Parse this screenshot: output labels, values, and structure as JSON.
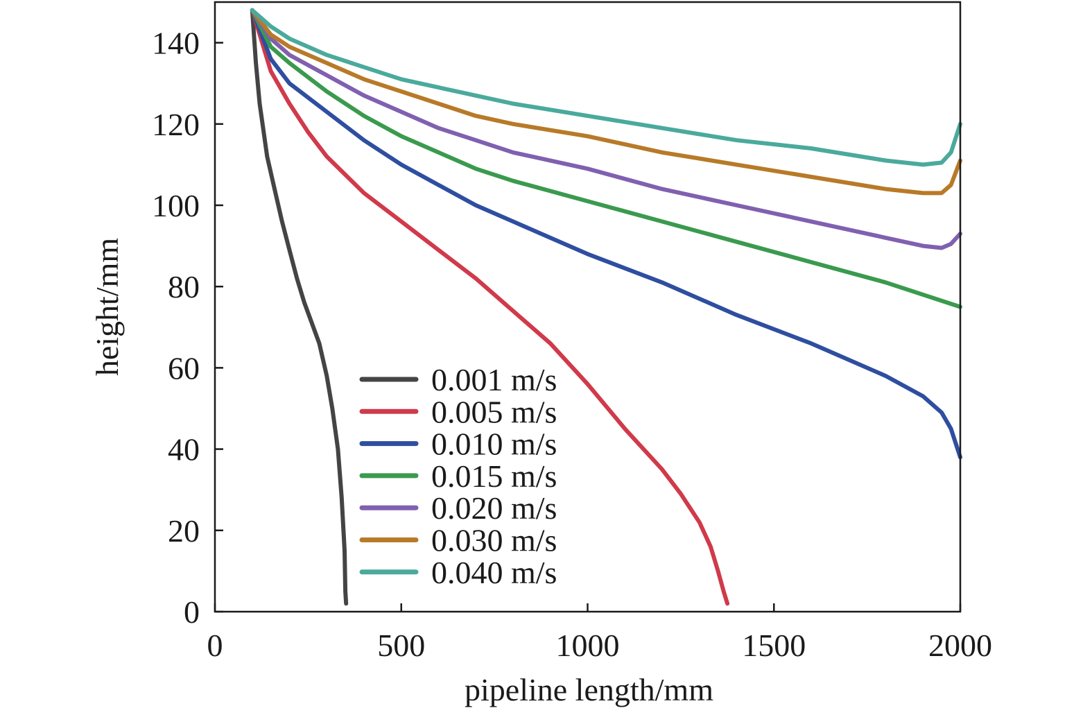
{
  "chart_data": {
    "type": "line",
    "xlabel": "pipeline length/mm",
    "ylabel": "height/mm",
    "xlim": [
      0,
      2000
    ],
    "ylim": [
      0,
      150
    ],
    "xticks": [
      0,
      500,
      1000,
      1500,
      2000
    ],
    "yticks": [
      0,
      20,
      40,
      60,
      80,
      100,
      120,
      140
    ],
    "x_tick_labels": [
      "0",
      "500",
      "1000",
      "1500",
      "2000"
    ],
    "y_tick_labels": [
      "0",
      "20",
      "40",
      "60",
      "80",
      "100",
      "120",
      "140"
    ],
    "grid": false,
    "legend_position": "bottom-left",
    "series": [
      {
        "name": "0.001 m/s",
        "color": "#444444",
        "points": [
          [
            100,
            148
          ],
          [
            110,
            135
          ],
          [
            120,
            125
          ],
          [
            140,
            112
          ],
          [
            160,
            104
          ],
          [
            180,
            96
          ],
          [
            200,
            89
          ],
          [
            220,
            82
          ],
          [
            240,
            76
          ],
          [
            260,
            71
          ],
          [
            280,
            66
          ],
          [
            300,
            58
          ],
          [
            315,
            50
          ],
          [
            330,
            40
          ],
          [
            340,
            28
          ],
          [
            348,
            15
          ],
          [
            350,
            5
          ],
          [
            352,
            2
          ]
        ]
      },
      {
        "name": "0.005 m/s",
        "color": "#d03a4a",
        "points": [
          [
            100,
            148
          ],
          [
            150,
            133
          ],
          [
            200,
            125
          ],
          [
            250,
            118
          ],
          [
            300,
            112
          ],
          [
            400,
            103
          ],
          [
            500,
            96
          ],
          [
            600,
            89
          ],
          [
            700,
            82
          ],
          [
            800,
            74
          ],
          [
            900,
            66
          ],
          [
            1000,
            56
          ],
          [
            1100,
            45
          ],
          [
            1200,
            35
          ],
          [
            1250,
            29
          ],
          [
            1300,
            22
          ],
          [
            1330,
            16
          ],
          [
            1350,
            10
          ],
          [
            1365,
            5
          ],
          [
            1375,
            2
          ]
        ]
      },
      {
        "name": "0.010 m/s",
        "color": "#2e4ea0",
        "points": [
          [
            100,
            148
          ],
          [
            150,
            136
          ],
          [
            200,
            130
          ],
          [
            300,
            123
          ],
          [
            400,
            116
          ],
          [
            500,
            110
          ],
          [
            600,
            105
          ],
          [
            700,
            100
          ],
          [
            800,
            96
          ],
          [
            900,
            92
          ],
          [
            1000,
            88
          ],
          [
            1200,
            81
          ],
          [
            1400,
            73
          ],
          [
            1600,
            66
          ],
          [
            1800,
            58
          ],
          [
            1900,
            53
          ],
          [
            1950,
            49
          ],
          [
            1975,
            45
          ],
          [
            2000,
            38
          ]
        ]
      },
      {
        "name": "0.015 m/s",
        "color": "#3a9a4e",
        "points": [
          [
            100,
            148
          ],
          [
            150,
            139
          ],
          [
            200,
            135
          ],
          [
            300,
            128
          ],
          [
            400,
            122
          ],
          [
            500,
            117
          ],
          [
            600,
            113
          ],
          [
            700,
            109
          ],
          [
            800,
            106
          ],
          [
            1000,
            101
          ],
          [
            1200,
            96
          ],
          [
            1400,
            91
          ],
          [
            1600,
            86
          ],
          [
            1800,
            81
          ],
          [
            2000,
            75
          ]
        ]
      },
      {
        "name": "0.020 m/s",
        "color": "#8060b0",
        "points": [
          [
            100,
            148
          ],
          [
            150,
            141
          ],
          [
            200,
            137
          ],
          [
            300,
            132
          ],
          [
            400,
            127
          ],
          [
            500,
            123
          ],
          [
            600,
            119
          ],
          [
            700,
            116
          ],
          [
            800,
            113
          ],
          [
            1000,
            109
          ],
          [
            1200,
            104
          ],
          [
            1400,
            100
          ],
          [
            1600,
            96
          ],
          [
            1800,
            92
          ],
          [
            1900,
            90
          ],
          [
            1950,
            89.5
          ],
          [
            1975,
            90.5
          ],
          [
            2000,
            93
          ]
        ]
      },
      {
        "name": "0.030 m/s",
        "color": "#b87a28",
        "points": [
          [
            100,
            148
          ],
          [
            150,
            142
          ],
          [
            200,
            139
          ],
          [
            300,
            135
          ],
          [
            400,
            131
          ],
          [
            500,
            128
          ],
          [
            600,
            125
          ],
          [
            700,
            122
          ],
          [
            800,
            120
          ],
          [
            1000,
            117
          ],
          [
            1200,
            113
          ],
          [
            1400,
            110
          ],
          [
            1600,
            107
          ],
          [
            1800,
            104
          ],
          [
            1900,
            103
          ],
          [
            1950,
            103
          ],
          [
            1975,
            105
          ],
          [
            2000,
            111
          ]
        ]
      },
      {
        "name": "0.040 m/s",
        "color": "#4aaa9c",
        "points": [
          [
            100,
            148
          ],
          [
            150,
            144
          ],
          [
            200,
            141
          ],
          [
            300,
            137
          ],
          [
            400,
            134
          ],
          [
            500,
            131
          ],
          [
            600,
            129
          ],
          [
            700,
            127
          ],
          [
            800,
            125
          ],
          [
            1000,
            122
          ],
          [
            1200,
            119
          ],
          [
            1400,
            116
          ],
          [
            1600,
            114
          ],
          [
            1800,
            111
          ],
          [
            1900,
            110
          ],
          [
            1950,
            110.5
          ],
          [
            1975,
            113
          ],
          [
            2000,
            120
          ]
        ]
      }
    ]
  }
}
